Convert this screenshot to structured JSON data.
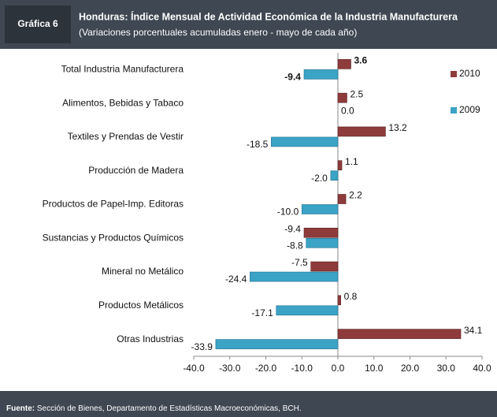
{
  "chart_data": {
    "type": "barh",
    "label": "Gráfica 6",
    "title": "Honduras: Índice Mensual de Actividad Económica de la Industria Manufacturera",
    "subtitle": "(Variaciones porcentuales acumuladas enero - mayo de cada año)",
    "categories": [
      "Total Industria Manufacturera",
      "Alimentos, Bebidas y Tabaco",
      "Textiles y Prendas de Vestir",
      "Producción de Madera",
      "Productos de Papel-Imp. Editoras",
      "Sustancias y Productos Químicos",
      "Mineral no Metálico",
      "Productos Metálicos",
      "Otras Industrias"
    ],
    "series": [
      {
        "name": "2010",
        "color": "#8e3b3b",
        "values": [
          3.6,
          2.5,
          13.2,
          1.1,
          2.2,
          -9.4,
          -7.5,
          0.8,
          34.1
        ],
        "value_labels": [
          "3.6",
          "2.5",
          "13.2",
          "1.1",
          "2.2",
          "-9.4",
          "-7.5",
          "0.8",
          "34.1"
        ]
      },
      {
        "name": "2009",
        "color": "#3aa3c6",
        "values": [
          -9.4,
          0.0,
          -18.5,
          -2.0,
          -10.0,
          -8.8,
          -24.4,
          -17.1,
          -33.9
        ],
        "value_labels": [
          "-9.4",
          "0.0",
          "-18.5",
          "-2.0",
          "-10.0",
          "-8.8",
          "-24.4",
          "-17.1",
          "-33.9"
        ]
      }
    ],
    "xlim": [
      -40,
      40
    ],
    "xticks": [
      {
        "value": -40,
        "label": "-40.0"
      },
      {
        "value": -30,
        "label": "-30.0"
      },
      {
        "value": -20,
        "label": "-20.0"
      },
      {
        "value": -10,
        "label": "-10.0"
      },
      {
        "value": 0,
        "label": "0.0"
      },
      {
        "value": 10,
        "label": "10.0"
      },
      {
        "value": 20,
        "label": "20.0"
      },
      {
        "value": 30,
        "label": "30.0"
      },
      {
        "value": 40,
        "label": "40.0"
      }
    ],
    "legend": "right",
    "source_label": "Fuente:",
    "source": "Sección de Bienes, Departamento de Estadísticas Macroeconómicas, BCH."
  }
}
